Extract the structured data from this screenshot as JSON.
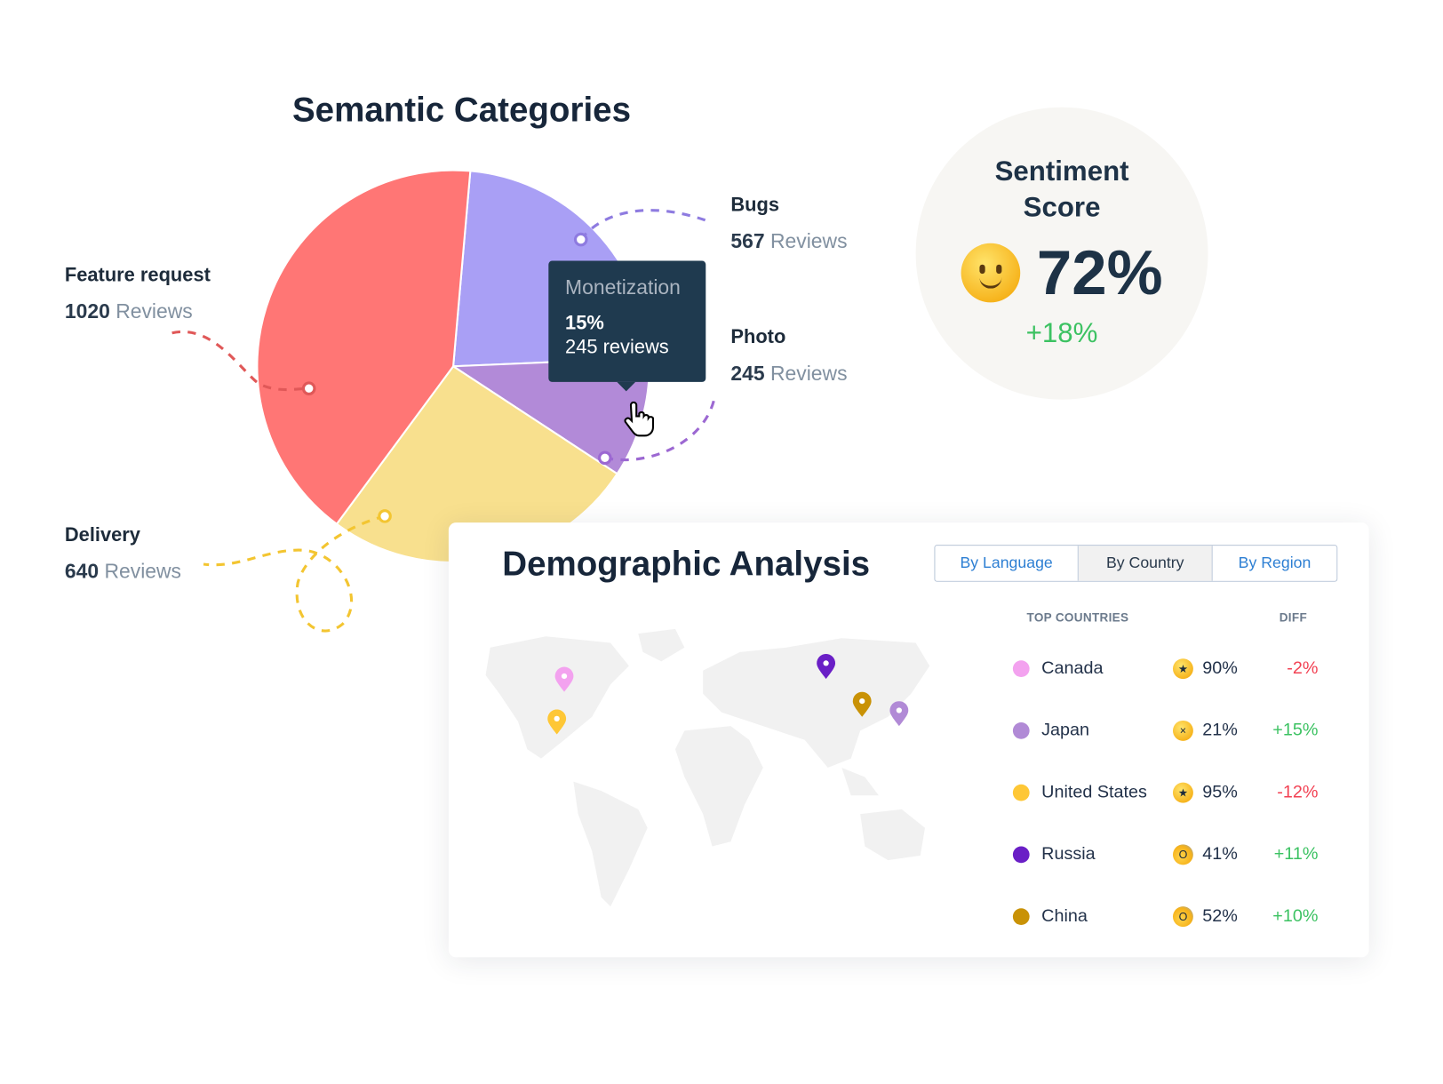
{
  "semantic": {
    "title": "Semantic Categories",
    "reviews_word": "Reviews",
    "categories": [
      {
        "name": "Bugs",
        "count": "567",
        "value": 567,
        "color": "#a99ff5"
      },
      {
        "name": "Photo",
        "count": "245",
        "value": 245,
        "color": "#b28ad8"
      },
      {
        "name": "Delivery",
        "count": "640",
        "value": 640,
        "color": "#f8e08e"
      },
      {
        "name": "Feature request",
        "count": "1020",
        "value": 1020,
        "color": "#ff7675"
      }
    ],
    "tooltip": {
      "name": "Monetization",
      "percent": "15%",
      "reviews": "245 reviews"
    }
  },
  "sentiment": {
    "title_line1": "Sentiment",
    "title_line2": "Score",
    "emoji": "slightly-smiling-face",
    "value": "72%",
    "diff": "+18%"
  },
  "demographic": {
    "title": "Demographic Analysis",
    "tabs": [
      {
        "label": "By Language",
        "active": false
      },
      {
        "label": "By Country",
        "active": true
      },
      {
        "label": "By Region",
        "active": false
      }
    ],
    "col_countries": "TOP COUNTRIES",
    "col_diff": "DIFF",
    "countries": [
      {
        "name": "Canada",
        "color": "#f3a2ef",
        "emoji": "star-struck",
        "glyph": "★",
        "pct": "90%",
        "diff": "-2%",
        "trend": "neg"
      },
      {
        "name": "Japan",
        "color": "#b18ad6",
        "emoji": "dizzy-face",
        "glyph": "×",
        "pct": "21%",
        "diff": "+15%",
        "trend": "pos"
      },
      {
        "name": "United States",
        "color": "#fec736",
        "emoji": "star-struck",
        "glyph": "★",
        "pct": "95%",
        "diff": "-12%",
        "trend": "neg"
      },
      {
        "name": "Russia",
        "color": "#6a1fc6",
        "emoji": "screaming-face",
        "glyph": "O",
        "pct": "41%",
        "diff": "+11%",
        "trend": "pos"
      },
      {
        "name": "China",
        "color": "#c99206",
        "emoji": "screaming-face",
        "glyph": "O",
        "pct": "52%",
        "diff": "+10%",
        "trend": "pos"
      }
    ]
  }
}
